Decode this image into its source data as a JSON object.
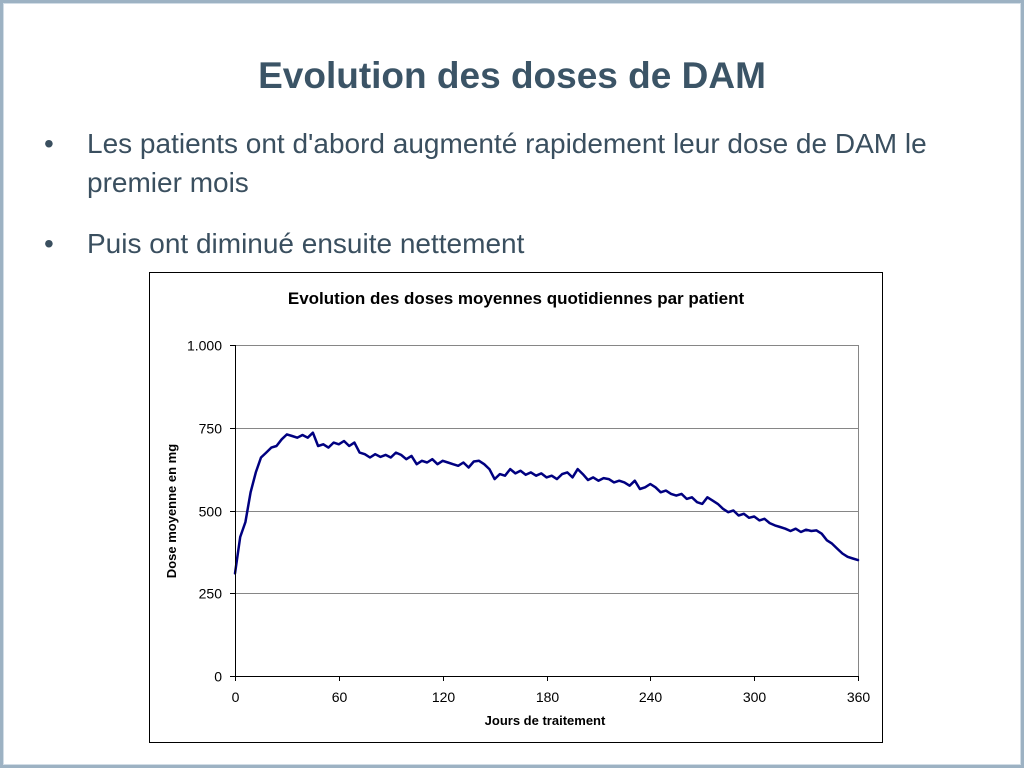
{
  "slide": {
    "title": "Evolution des doses de DAM",
    "bullet_marker": "•",
    "bullets": [
      {
        "text": "Les patients ont d'abord augmenté rapidement leur dose de DAM le premier mois"
      },
      {
        "text": "Puis ont diminué ensuite nettement"
      }
    ]
  },
  "chart_data": {
    "type": "line",
    "title": "Evolution des doses moyennes quotidiennes par patient",
    "xlabel": "Jours de traitement",
    "ylabel": "Dose moyenne en mg",
    "xlim": [
      0,
      360
    ],
    "ylim": [
      0,
      1000
    ],
    "x_ticks": [
      0,
      60,
      120,
      180,
      240,
      300,
      360
    ],
    "x_tick_labels": [
      "0",
      "60",
      "120",
      "180",
      "240",
      "300",
      "360"
    ],
    "y_ticks": [
      0,
      250,
      500,
      750,
      1000
    ],
    "y_tick_labels": [
      "0",
      "250",
      "500",
      "750",
      "1.000"
    ],
    "grid": "horizontal",
    "legend": "none",
    "series": [
      {
        "color": "#000080",
        "x": [
          0,
          3,
          6,
          9,
          12,
          15,
          18,
          21,
          24,
          27,
          30,
          33,
          36,
          39,
          42,
          45,
          48,
          51,
          54,
          57,
          60,
          63,
          66,
          69,
          72,
          75,
          78,
          81,
          84,
          87,
          90,
          93,
          96,
          99,
          102,
          105,
          108,
          111,
          114,
          117,
          120,
          123,
          126,
          129,
          132,
          135,
          138,
          141,
          144,
          147,
          150,
          153,
          156,
          159,
          162,
          165,
          168,
          171,
          174,
          177,
          180,
          183,
          186,
          189,
          192,
          195,
          198,
          201,
          204,
          207,
          210,
          213,
          216,
          219,
          222,
          225,
          228,
          231,
          234,
          237,
          240,
          243,
          246,
          249,
          252,
          255,
          258,
          261,
          264,
          267,
          270,
          273,
          276,
          279,
          282,
          285,
          288,
          291,
          294,
          297,
          300,
          303,
          306,
          309,
          312,
          315,
          318,
          321,
          324,
          327,
          330,
          333,
          336,
          339,
          342,
          345,
          348,
          351,
          354,
          357,
          360
        ],
        "y": [
          310,
          420,
          465,
          555,
          615,
          660,
          675,
          690,
          695,
          715,
          730,
          725,
          720,
          728,
          720,
          735,
          695,
          700,
          690,
          705,
          700,
          710,
          695,
          705,
          675,
          670,
          660,
          670,
          662,
          668,
          660,
          675,
          668,
          655,
          665,
          640,
          650,
          645,
          655,
          640,
          650,
          645,
          640,
          635,
          645,
          630,
          648,
          650,
          640,
          625,
          595,
          610,
          605,
          625,
          612,
          620,
          608,
          615,
          605,
          612,
          600,
          605,
          595,
          610,
          615,
          600,
          625,
          610,
          592,
          600,
          590,
          598,
          595,
          585,
          590,
          585,
          575,
          590,
          565,
          570,
          580,
          570,
          555,
          560,
          550,
          545,
          550,
          535,
          540,
          525,
          520,
          540,
          530,
          520,
          505,
          495,
          500,
          485,
          490,
          478,
          482,
          470,
          475,
          462,
          455,
          450,
          445,
          438,
          445,
          435,
          442,
          438,
          440,
          430,
          410,
          400,
          385,
          370,
          360,
          355,
          350
        ]
      }
    ]
  }
}
